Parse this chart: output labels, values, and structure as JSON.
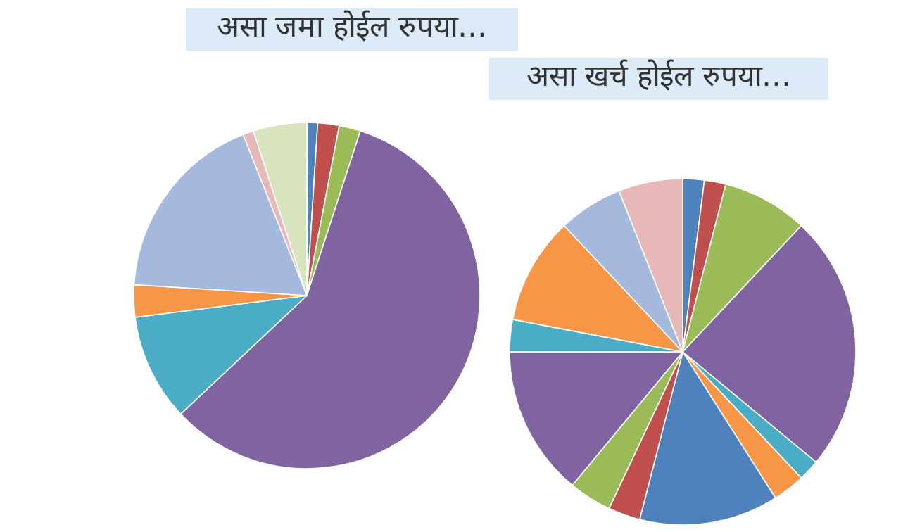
{
  "chart_data": [
    {
      "type": "pie",
      "title": "असा जमा होईल रुपया…",
      "categories": [
        null,
        null,
        null,
        null,
        null,
        null,
        null,
        null,
        null
      ],
      "values": [
        1,
        2,
        2,
        58,
        10,
        3,
        18,
        1,
        5
      ],
      "colors": [
        "#4f81bd",
        "#c0504d",
        "#9bbb59",
        "#8064a2",
        "#4bacc6",
        "#f79646",
        "#a5b9dc",
        "#e6b9b8",
        "#d7e4bd"
      ]
    },
    {
      "type": "pie",
      "title": "असा खर्च होईल रुपया…",
      "categories": [
        null,
        null,
        null,
        null,
        null,
        null,
        null,
        null,
        null,
        null,
        null,
        null,
        null,
        null
      ],
      "values": [
        2,
        2,
        8,
        24,
        2,
        3,
        13,
        3,
        4,
        14,
        3,
        10,
        6,
        6
      ],
      "colors": [
        "#4f81bd",
        "#c0504d",
        "#9bbb59",
        "#8064a2",
        "#4bacc6",
        "#f79646",
        "#4f81bd",
        "#c0504d",
        "#9bbb59",
        "#8064a2",
        "#4bacc6",
        "#f79646",
        "#a5b9dc",
        "#e6b9b8"
      ]
    }
  ]
}
